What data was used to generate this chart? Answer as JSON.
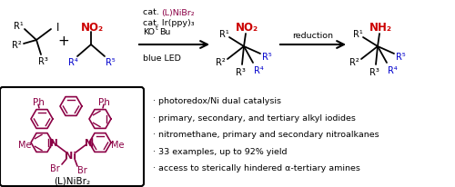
{
  "bg_color": "#ffffff",
  "black": "#000000",
  "red": "#cc0000",
  "blue": "#0000cc",
  "purple": "#8b0045",
  "bullet_points": [
    "· photoredox/Ni dual catalysis",
    "· primary, secondary, and tertiary alkyl iodides",
    "· nitromethane, primary and secondary nitroalkanes",
    "· 33 examples, up to 92% yield",
    "· access to sterically hindered α-tertiary amines"
  ],
  "label_LNiBr2": "(L)NiBr₂"
}
